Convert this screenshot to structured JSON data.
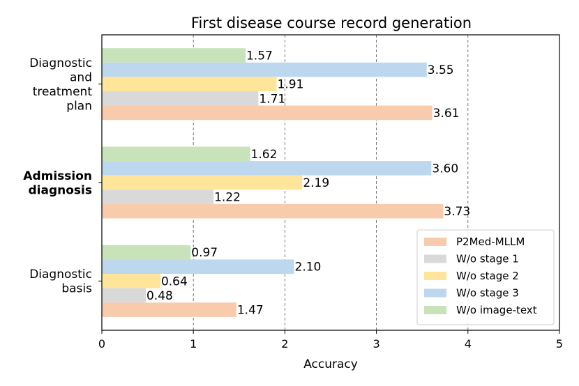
{
  "chart_data": {
    "type": "bar",
    "orientation": "horizontal",
    "title": "First disease course record generation",
    "xlabel": "Accuracy",
    "ylabel": "",
    "xlim": [
      0,
      5
    ],
    "xticks": [
      "0",
      "1",
      "2",
      "3",
      "4",
      "5"
    ],
    "grid": "vertical dashed",
    "legend_position": "lower-right",
    "categories": [
      {
        "lines": [
          "Diagnostic",
          "and",
          "treatment",
          "plan"
        ],
        "bold": false
      },
      {
        "lines": [
          "Admission",
          "diagnosis"
        ],
        "bold": true
      },
      {
        "lines": [
          "Diagnostic",
          "basis"
        ],
        "bold": false
      }
    ],
    "series": [
      {
        "name": "W/o image-text",
        "color": "#c8e3b9",
        "values": [
          1.57,
          1.62,
          0.97
        ],
        "labels": [
          "1.57",
          "1.62",
          "0.97"
        ]
      },
      {
        "name": "W/o stage 3",
        "color": "#bdd7ee",
        "values": [
          3.55,
          3.6,
          2.1
        ],
        "labels": [
          "3.55",
          "3.60",
          "2.10"
        ]
      },
      {
        "name": "W/o stage 2",
        "color": "#ffe599",
        "values": [
          1.91,
          2.19,
          0.64
        ],
        "labels": [
          "1.91",
          "2.19",
          "0.64"
        ]
      },
      {
        "name": "W/o stage 1",
        "color": "#d9d9d9",
        "values": [
          1.71,
          1.22,
          0.48
        ],
        "labels": [
          "1.71",
          "1.22",
          "0.48"
        ]
      },
      {
        "name": "P2Med-MLLM",
        "color": "#f8cbad",
        "values": [
          3.61,
          3.73,
          1.47
        ],
        "labels": [
          "3.61",
          "3.73",
          "1.47"
        ]
      }
    ],
    "legend_order": [
      "P2Med-MLLM",
      "W/o stage 1",
      "W/o stage 2",
      "W/o stage 3",
      "W/o image-text"
    ]
  }
}
